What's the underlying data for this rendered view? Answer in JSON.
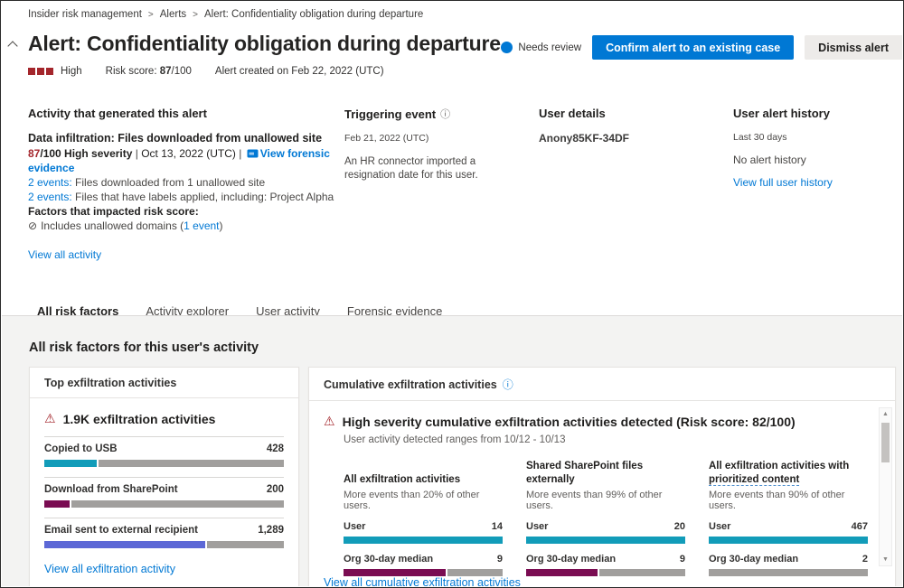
{
  "icons": {
    "breadcrumb_separator": ">",
    "info": "ⓘ",
    "warning": "⚠",
    "blocked": "⊘",
    "scroll_up": "▲",
    "scroll_down": "▼"
  },
  "breadcrumb": {
    "items": [
      {
        "label": "Insider risk management"
      },
      {
        "label": "Alerts"
      },
      {
        "label": "Alert: Confidentiality obligation during departure"
      }
    ]
  },
  "header": {
    "title": "Alert: Confidentiality obligation during departure",
    "status": "Needs review",
    "confirm_button": "Confirm alert to an existing case",
    "dismiss_button": "Dismiss alert",
    "severity": "High",
    "risk_score_label": "Risk score: ",
    "risk_score_value": "87",
    "risk_score_suffix": "/100",
    "created": "Alert created on Feb 22, 2022 (UTC)"
  },
  "activity": {
    "heading": "Activity that generated this alert",
    "title": "Data infiltration: Files downloaded from unallowed site",
    "score_value": "87",
    "score_text": "/100 High severity",
    "separator": " | ",
    "date": "Oct 13, 2022 (UTC)",
    "forensic_link": "View forensic evidence",
    "events": [
      {
        "link": "2 events:",
        "text": " Files downloaded from 1 unallowed site"
      },
      {
        "link": "2 events:",
        "text": " Files that have labels applied, including: Project Alpha"
      }
    ],
    "factors_heading": "Factors that impacted risk score:",
    "factor_text": "Includes unallowed domains (",
    "factor_link": "1 event",
    "factor_suffix": ")",
    "view_all": "View all activity"
  },
  "triggering_event": {
    "heading": "Triggering event",
    "date": "Feb 21, 2022 (UTC)",
    "description": "An HR connector imported a resignation date for this user."
  },
  "user_details": {
    "heading": "User details",
    "name": "Anony85KF-34DF"
  },
  "alert_history": {
    "heading": "User alert history",
    "period": "Last 30 days",
    "empty": "No alert history",
    "link": "View full user history"
  },
  "tabs": [
    {
      "label": "All risk factors",
      "active": true
    },
    {
      "label": "Activity explorer",
      "active": false
    },
    {
      "label": "User activity",
      "active": false
    },
    {
      "label": "Forensic evidence",
      "active": false
    }
  ],
  "risk_section": {
    "heading": "All risk factors for this user's activity",
    "top_card": {
      "header": "Top exfiltration activities",
      "alert": "1.9K exfiltration activities",
      "bars": [
        {
          "label": "Copied to USB",
          "value": "428",
          "fill_pct": 22,
          "color": "#129cb9"
        },
        {
          "label": "Download from SharePoint",
          "value": "200",
          "fill_pct": 10.5,
          "color": "#7a0c52"
        },
        {
          "label": "Email sent to external recipient",
          "value": "1,289",
          "fill_pct": 67,
          "color": "#5c68d6"
        }
      ],
      "link": "View all exfiltration activity"
    },
    "cumulative_card": {
      "header": "Cumulative exfiltration activities",
      "alert": "High severity cumulative exfiltration activities detected (Risk score: 82/100)",
      "subtitle": "User activity detected ranges from 10/12 - 10/13",
      "user_bar_color": "#129cb9",
      "median_bar_color": "#7a0c52",
      "columns": [
        {
          "title": "All exfiltration activities",
          "title_flagged": "",
          "subtitle": "More events than 20% of other users.",
          "user_label": "User",
          "user_value": "14",
          "user_pct": 100,
          "median_label": "Org 30-day median",
          "median_value": "9",
          "median_pct": 64
        },
        {
          "title": "Shared SharePoint files externally",
          "title_flagged": "",
          "subtitle": "More events than 99% of other users.",
          "user_label": "User",
          "user_value": "20",
          "user_pct": 100,
          "median_label": "Org 30-day median",
          "median_value": "9",
          "median_pct": 45
        },
        {
          "title": "All exfiltration activities with ",
          "title_flagged": "prioritized content",
          "subtitle": "More events than 90% of other users.",
          "user_label": "User",
          "user_value": "467",
          "user_pct": 100,
          "median_label": "Org 30-day median",
          "median_value": "2",
          "median_pct": 0
        }
      ],
      "link": "View all cumulative exfiltration activities"
    }
  },
  "colors": {
    "brand": "#0078d4",
    "severity_red": "#a4262c",
    "bar_track_gray": "#a19f9d"
  }
}
